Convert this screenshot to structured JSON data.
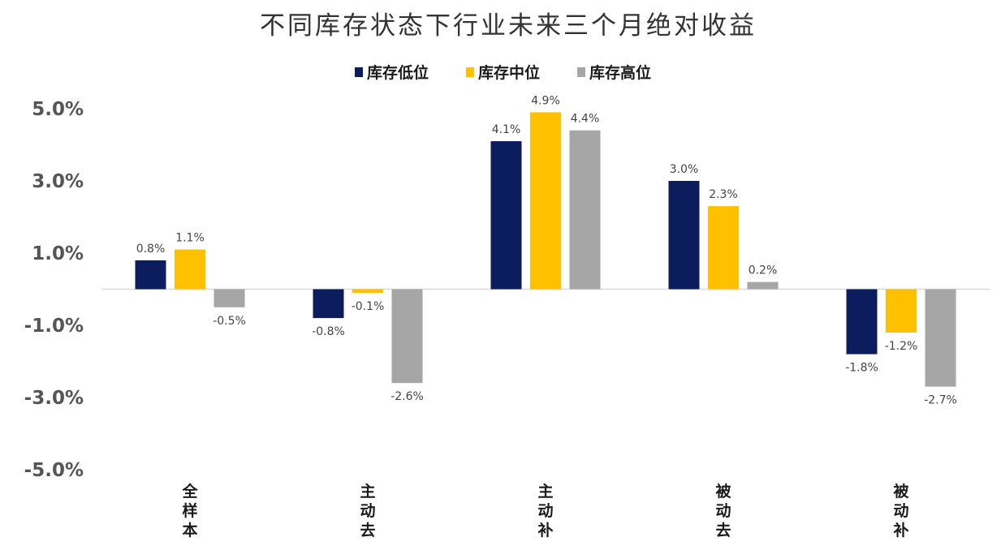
{
  "chart_data": {
    "type": "bar",
    "title": "不同库存状态下行业未来三个月绝对收益",
    "categories": [
      "全样本",
      "主动去",
      "主动补",
      "被动去",
      "被动补"
    ],
    "series": [
      {
        "name": "库存低位",
        "color": "#0b1d5c",
        "values": [
          0.8,
          -0.8,
          4.1,
          3.0,
          -1.8
        ],
        "labels": [
          "0.8%",
          "-0.8%",
          "4.1%",
          "3.0%",
          "-1.8%"
        ]
      },
      {
        "name": "库存中位",
        "color": "#ffc000",
        "values": [
          1.1,
          -0.1,
          4.9,
          2.3,
          -1.2
        ],
        "labels": [
          "1.1%",
          "-0.1%",
          "4.9%",
          "2.3%",
          "-1.2%"
        ]
      },
      {
        "name": "库存高位",
        "color": "#a6a6a6",
        "values": [
          -0.5,
          -2.6,
          4.4,
          0.2,
          -2.7
        ],
        "labels": [
          "-0.5%",
          "-2.6%",
          "4.4%",
          "0.2%",
          "-2.7%"
        ]
      }
    ],
    "yticks": [
      5.0,
      3.0,
      1.0,
      -1.0,
      -3.0,
      -5.0
    ],
    "ytick_labels": [
      "5.0%",
      "3.0%",
      "1.0%",
      "-1.0%",
      "-3.0%",
      "-5.0%"
    ],
    "ylim": [
      -5.0,
      5.0
    ],
    "grid": false,
    "legend_position": "top-center",
    "axis_color": "#d9d9d9"
  }
}
